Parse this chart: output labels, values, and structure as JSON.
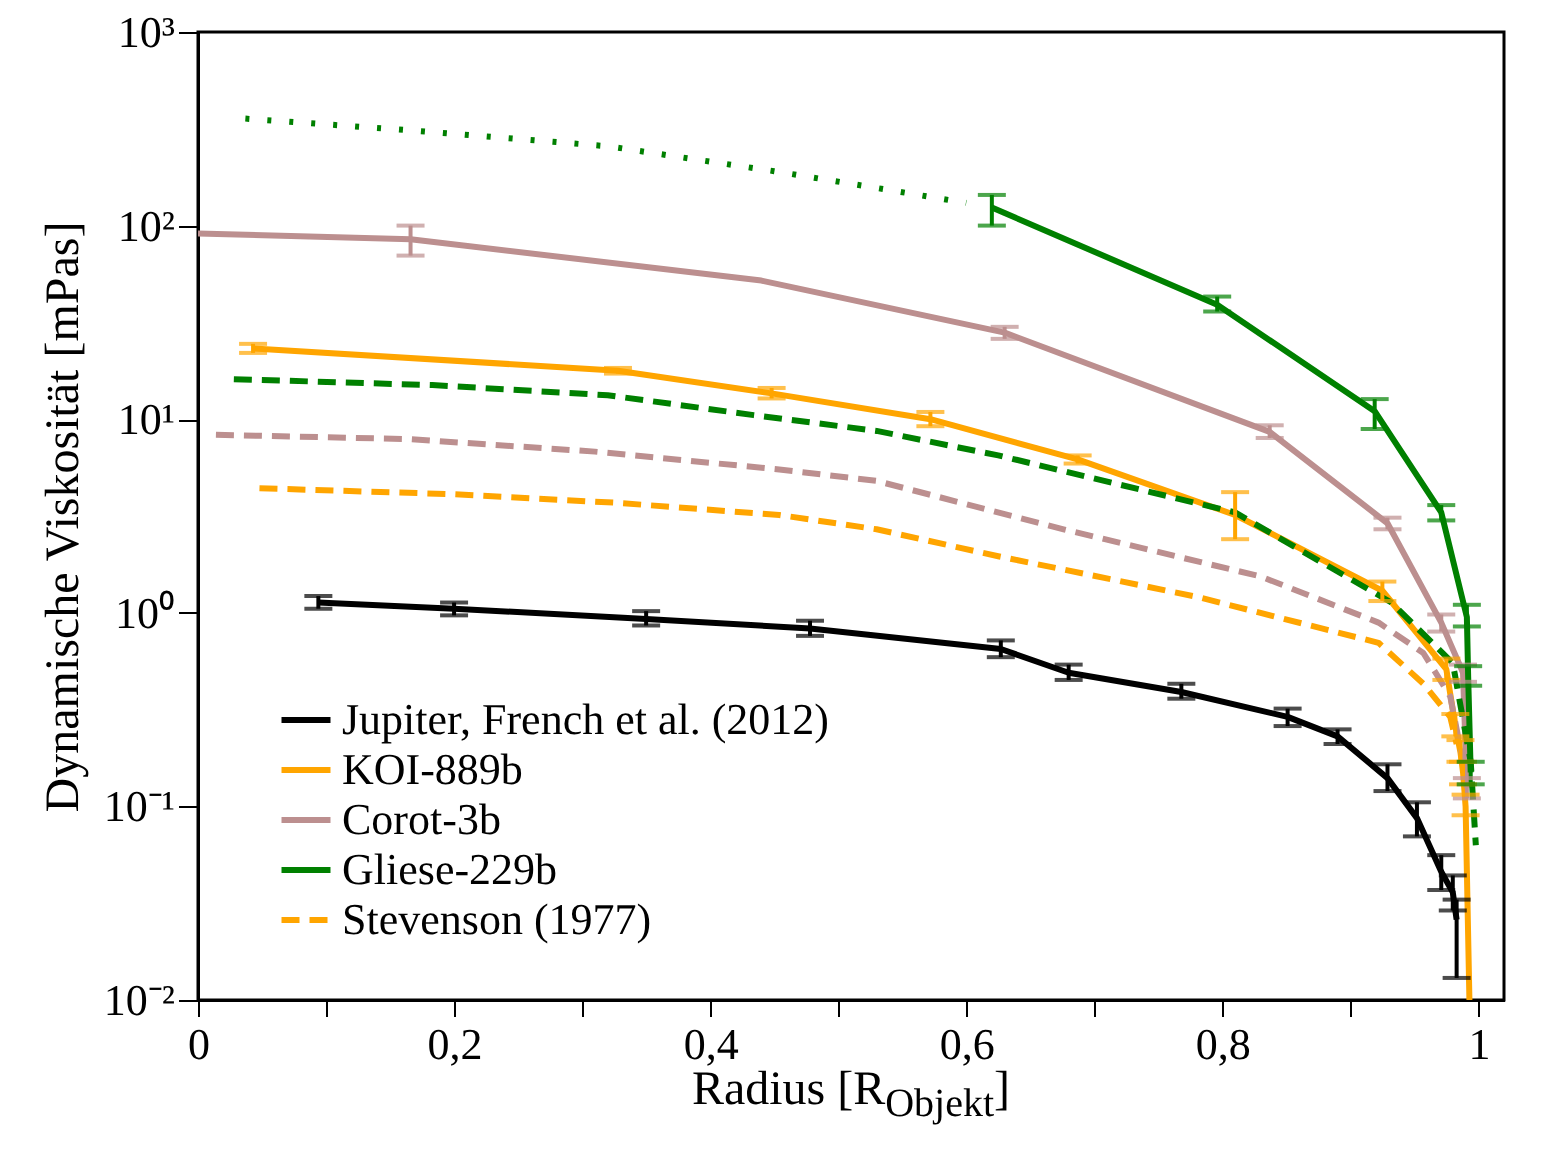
{
  "chart_data": {
    "type": "line",
    "xlabel": "Radius [R$_{Objekt}$]",
    "ylabel": "Dynamische Viskosität [mPas]",
    "log": "y",
    "legend": "bottom left",
    "grid": false,
    "xlim": [
      0,
      1.02
    ],
    "xticks": [
      0,
      {
        "value": 0.1,
        "label": null
      },
      {
        "value": 0.2,
        "label": "0,2"
      },
      {
        "value": 0.3,
        "label": null
      },
      {
        "value": 0.4,
        "label": "0,4"
      },
      {
        "value": 0.5,
        "label": null
      },
      {
        "value": 0.6,
        "label": "0,6"
      },
      {
        "value": 0.7,
        "label": null
      },
      {
        "value": 0.8,
        "label": "0,8"
      },
      {
        "value": 0.9,
        "label": null
      },
      1
    ],
    "ylim": [
      0.01,
      1000
    ],
    "yticks": [
      {
        "value": 0.01,
        "label": "10⁻²"
      },
      {
        "value": 0.1,
        "label": "10⁻¹"
      },
      {
        "value": 1,
        "label": "10⁰"
      },
      {
        "value": 10,
        "label": "10¹"
      },
      {
        "value": 100,
        "label": "10²"
      },
      {
        "value": 1000,
        "label": "10³"
      }
    ],
    "series": [
      {
        "name": "Jupiter, French et al. (2012)",
        "color": "#000000",
        "line_style": "solid",
        "x": [
          0.094,
          0.2,
          0.35,
          0.478,
          0.627,
          0.68,
          0.768,
          0.851,
          0.89,
          0.929,
          0.952,
          0.971,
          0.98,
          0.983
        ],
        "values": [
          1.13,
          1.05,
          0.93,
          0.83,
          0.65,
          0.49,
          0.39,
          0.29,
          0.23,
          0.14,
          0.087,
          0.046,
          0.036,
          0.026
        ],
        "errors": [
          [
            1.05,
            1.22
          ],
          [
            0.97,
            1.13
          ],
          [
            0.86,
            1.02
          ],
          [
            0.76,
            0.91
          ],
          [
            0.59,
            0.72
          ],
          [
            0.45,
            0.54
          ],
          [
            0.36,
            0.43
          ],
          [
            0.26,
            0.32
          ],
          [
            0.21,
            0.25
          ],
          [
            0.12,
            0.165
          ],
          [
            0.07,
            0.105
          ],
          [
            0.037,
            0.056
          ],
          [
            0.029,
            0.044
          ],
          [
            0.013,
            0.033
          ]
        ]
      },
      {
        "name": "KOI-889b",
        "color": "#ffa500",
        "line_style": "solid",
        "x": [
          0.043,
          0.328,
          0.448,
          0.572,
          0.687,
          0.81,
          0.925,
          0.975,
          0.982,
          0.986,
          0.988,
          0.99,
          0.993
        ],
        "values": [
          23.2,
          17.8,
          13.6,
          10,
          6.2,
          3.2,
          1.3,
          0.51,
          0.26,
          0.19,
          0.15,
          0.1,
          0.01
        ],
        "errors": [
          [
            22,
            24.5
          ],
          [
            17.2,
            18.4
          ],
          [
            12.8,
            14.5
          ],
          [
            9.2,
            10.9
          ],
          [
            5.9,
            6.5
          ],
          [
            2.4,
            4.2
          ],
          [
            1.15,
            1.45
          ],
          [
            0.45,
            0.58
          ],
          [
            0.23,
            0.3
          ],
          [
            0.17,
            0.22
          ],
          [
            0.13,
            0.17
          ],
          [
            0.09,
            0.115
          ],
          null
        ]
      },
      {
        "name": "Corot-3b",
        "color": "#bc8f8f",
        "line_style": "solid",
        "x": [
          0,
          0.166,
          0.44,
          0.63,
          0.837,
          0.929,
          0.971,
          0.988,
          0.991
        ],
        "values": [
          91,
          85,
          52,
          28,
          8.6,
          2.9,
          0.89,
          0.49,
          0.125
        ],
        "errors": [
          null,
          [
            70,
            100
          ],
          null,
          [
            26,
            30
          ],
          [
            8,
            9.3
          ],
          [
            2.7,
            3.1
          ],
          [
            0.8,
            0.98
          ],
          [
            0.44,
            0.54
          ],
          [
            0.11,
            0.14
          ]
        ]
      },
      {
        "name": "Gliese-229b",
        "color": "#008000",
        "line_style": "solid",
        "x": [
          0.62,
          0.796,
          0.919,
          0.971,
          0.991,
          0.992,
          0.994
        ],
        "values": [
          124,
          39,
          11,
          3.3,
          0.95,
          0.47,
          0.15
        ],
        "errors": [
          [
            100,
            144
          ],
          [
            36,
            43
          ],
          [
            8.9,
            12.7
          ],
          [
            3,
            3.6
          ],
          [
            0.85,
            1.1
          ],
          [
            0.42,
            0.53
          ],
          [
            0.13,
            0.17
          ]
        ]
      },
      {
        "color": "#008000",
        "line_style": "dotted",
        "x": [
          0.037,
          0.17,
          0.32,
          0.45,
          0.526,
          0.6
        ],
        "values": [
          357,
          309,
          257,
          191,
          158,
          131
        ]
      },
      {
        "color": "#008000",
        "line_style": "dashed",
        "x": [
          0.028,
          0.183,
          0.32,
          0.434,
          0.53,
          0.625,
          0.81,
          0.932,
          0.98,
          0.994,
          0.998
        ],
        "values": [
          16.1,
          15,
          13.3,
          10.5,
          8.7,
          6.5,
          3.3,
          1.13,
          0.55,
          0.17,
          0.063
        ]
      },
      {
        "color": "#bc8f8f",
        "line_style": "dashed",
        "x": [
          0.014,
          0.163,
          0.31,
          0.454,
          0.53,
          0.676,
          0.83,
          0.922,
          0.957,
          0.978,
          0.988
        ],
        "values": [
          8.3,
          7.9,
          6.8,
          5.5,
          4.8,
          2.7,
          1.54,
          0.89,
          0.62,
          0.37,
          0.17
        ]
      },
      {
        "name": "Stevenson (1977)",
        "color": "#ffa500",
        "line_style": "dashed",
        "x": [
          0.048,
          0.198,
          0.327,
          0.454,
          0.53,
          0.625,
          0.78,
          0.922,
          0.957,
          0.978,
          0.983
        ],
        "values": [
          4.4,
          4.1,
          3.7,
          3.2,
          2.7,
          1.96,
          1.21,
          0.7,
          0.43,
          0.29,
          0.21
        ]
      }
    ]
  }
}
